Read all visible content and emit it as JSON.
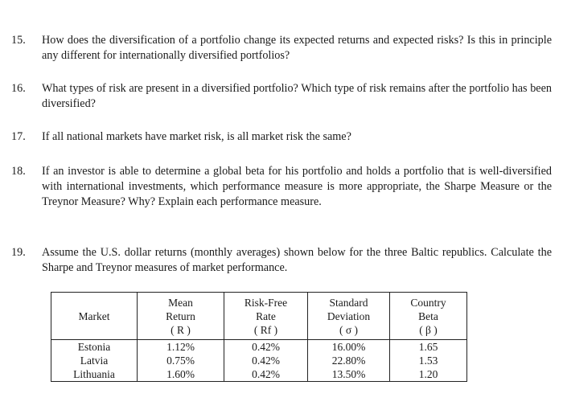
{
  "questions": [
    {
      "number": "15.",
      "text": "How does the diversification of a portfolio change its expected returns and expected risks? Is this in principle any different for internationally diversified portfolios?"
    },
    {
      "number": "16.",
      "text": "What types of risk are present in a diversified portfolio? Which type of risk remains after the portfolio has been diversified?"
    },
    {
      "number": "17.",
      "text": "If all national markets have market risk, is all market risk the same?"
    },
    {
      "number": "18.",
      "text": "If an investor is able to determine a global beta for his portfolio and holds a portfolio that is well-diversified with international investments, which performance measure is more appropriate, the Sharpe Measure or the Treynor Measure? Why? Explain each performance measure."
    },
    {
      "number": "19.",
      "text": "Assume the U.S. dollar returns (monthly averages) shown below for the three Baltic republics. Calculate the Sharpe and Treynor measures of market performance."
    }
  ],
  "table": {
    "headers": [
      {
        "lines": [
          "Market"
        ]
      },
      {
        "lines": [
          "Mean",
          "Return",
          "( R )"
        ]
      },
      {
        "lines": [
          "Risk-Free",
          "Rate",
          "( Rf )"
        ]
      },
      {
        "lines": [
          "Standard",
          "Deviation",
          "( σ )"
        ]
      },
      {
        "lines": [
          "Country",
          "Beta",
          "( β )"
        ]
      }
    ],
    "rows": [
      [
        "Estonia",
        "1.12%",
        "0.42%",
        "16.00%",
        "1.65"
      ],
      [
        "Latvia",
        "0.75%",
        "0.42%",
        "22.80%",
        "1.53"
      ],
      [
        "Lithuania",
        "1.60%",
        "0.42%",
        "13.50%",
        "1.20"
      ]
    ]
  }
}
